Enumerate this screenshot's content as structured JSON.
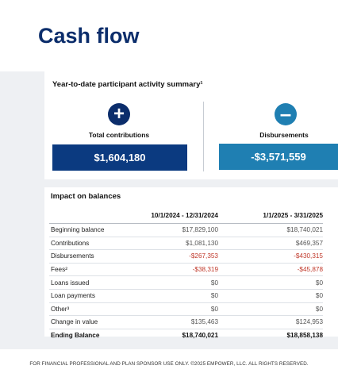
{
  "page_title": "Cash flow",
  "summary": {
    "title": "Year-to-date participant activity summary¹",
    "contributions": {
      "label": "Total contributions",
      "value": "$1,604,180",
      "icon": "plus-circle-icon"
    },
    "disbursements": {
      "label": "Disbursements",
      "value": "-$3,571,559",
      "icon": "minus-circle-icon"
    }
  },
  "impact": {
    "title": "Impact on balances",
    "columns": [
      "",
      "10/1/2024 - 12/31/2024",
      "1/1/2025 - 3/31/2025"
    ],
    "rows": [
      {
        "label": "Beginning balance",
        "p1": "$17,829,100",
        "p2": "$18,740,021",
        "negative": false
      },
      {
        "label": "Contributions",
        "p1": "$1,081,130",
        "p2": "$469,357",
        "negative": false
      },
      {
        "label": "Disbursements",
        "p1": "-$267,353",
        "p2": "-$430,315",
        "negative": true
      },
      {
        "label": "Fees²",
        "p1": "-$38,319",
        "p2": "-$45,878",
        "negative": true
      },
      {
        "label": "Loans issued",
        "p1": "$0",
        "p2": "$0",
        "negative": false
      },
      {
        "label": "Loan payments",
        "p1": "$0",
        "p2": "$0",
        "negative": false
      },
      {
        "label": "Other³",
        "p1": "$0",
        "p2": "$0",
        "negative": false
      },
      {
        "label": "Change in value",
        "p1": "$135,463",
        "p2": "$124,953",
        "negative": false
      },
      {
        "label": "Ending Balance",
        "p1": "$18,740,021",
        "p2": "$18,858,138",
        "negative": false,
        "total": true
      }
    ]
  },
  "footer": "FOR FINANCIAL PROFESSIONAL AND PLAN SPONSOR USE ONLY. ©2025 EMPOWER, LLC. ALL RIGHTS RESERVED.",
  "colors": {
    "navy": "#0b2d6b",
    "blue": "#1f7fb2",
    "negative": "#c0392b",
    "band": "#eef0f3"
  }
}
